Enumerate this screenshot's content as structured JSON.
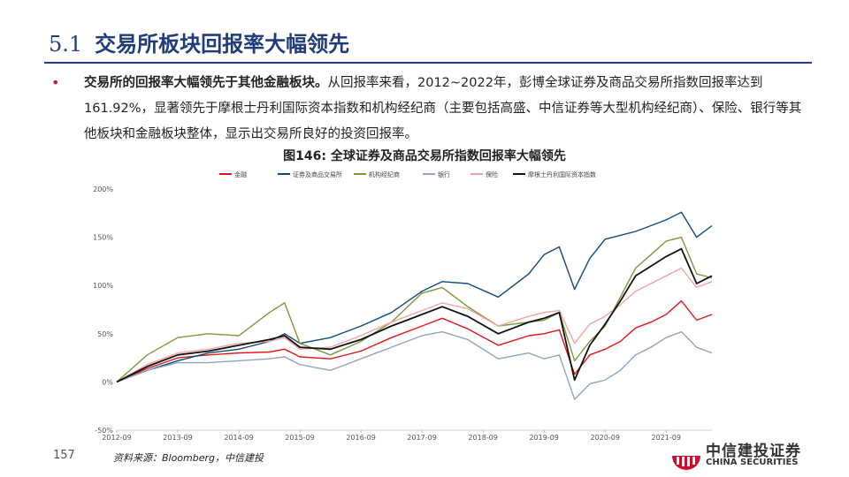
{
  "header": {
    "section_number": "5.1",
    "title": "交易所板块回报率大幅领先"
  },
  "body": {
    "lead_bold": "交易所的回报率大幅领先于其他金融板块。",
    "text": "从回报率来看，2012~2022年，彭博全球证券及商品交易所指数回报率达到161.92%，显著领先于摩根士丹利国际资本指数和机构经纪商（主要包括高盛、中信证券等大型机构经纪商）、保险、银行等其他板块和金融板块整体，显示出交易所良好的投资回报率。"
  },
  "figure": {
    "title": "图146:  全球证券及商品交易所指数回报率大幅领先"
  },
  "footer": {
    "page_number": "157",
    "source": "资料来源：Bloomberg，中信建投",
    "logo_cn": "中信建投证券",
    "logo_en": "CHINA SECURITIES"
  },
  "chart_data": {
    "type": "line",
    "title": "",
    "xlabel": "",
    "ylabel": "",
    "x_ticks": [
      "2012-09",
      "2013-09",
      "2014-09",
      "2015-09",
      "2016-09",
      "2017-09",
      "2018-09",
      "2019-09",
      "2020-09",
      "2021-09"
    ],
    "y_ticks": [
      "200%",
      "150%",
      "100%",
      "50%",
      "0%",
      "-50%"
    ],
    "ylim": [
      -50,
      200
    ],
    "xlim": [
      "2012-09",
      "2022-06"
    ],
    "legend_position": "top",
    "grid": false,
    "x": [
      "2012-09",
      "2013-03",
      "2013-09",
      "2014-03",
      "2014-09",
      "2015-03",
      "2015-06",
      "2015-09",
      "2016-03",
      "2016-09",
      "2017-03",
      "2017-09",
      "2018-01",
      "2018-06",
      "2018-12",
      "2019-06",
      "2019-09",
      "2019-12",
      "2020-03",
      "2020-06",
      "2020-09",
      "2020-12",
      "2021-03",
      "2021-06",
      "2021-09",
      "2021-12",
      "2022-03",
      "2022-06"
    ],
    "series": [
      {
        "name": "金融",
        "color": "#e0161b",
        "values": [
          0,
          14,
          25,
          28,
          30,
          31,
          34,
          26,
          24,
          32,
          46,
          58,
          66,
          55,
          38,
          48,
          50,
          54,
          8,
          28,
          34,
          42,
          56,
          62,
          70,
          84,
          64,
          70
        ]
      },
      {
        "name": "证券及商品交易所",
        "color": "#0f4a7a",
        "values": [
          0,
          12,
          22,
          30,
          34,
          42,
          50,
          40,
          46,
          58,
          72,
          94,
          104,
          102,
          88,
          112,
          132,
          140,
          96,
          128,
          148,
          152,
          156,
          162,
          168,
          176,
          150,
          162
        ]
      },
      {
        "name": "机构经纪商",
        "color": "#7a9a3a",
        "values": [
          0,
          28,
          46,
          50,
          48,
          72,
          82,
          40,
          28,
          42,
          62,
          92,
          98,
          78,
          58,
          62,
          64,
          72,
          22,
          42,
          58,
          88,
          118,
          132,
          146,
          150,
          112,
          108
        ]
      },
      {
        "name": "银行",
        "color": "#8fa5bf",
        "values": [
          0,
          12,
          20,
          20,
          22,
          24,
          26,
          18,
          12,
          24,
          36,
          48,
          52,
          44,
          24,
          30,
          24,
          28,
          -18,
          -2,
          2,
          12,
          28,
          36,
          46,
          52,
          36,
          30
        ]
      },
      {
        "name": "保险",
        "color": "#f2a3a6",
        "values": [
          0,
          18,
          30,
          34,
          40,
          42,
          46,
          34,
          36,
          48,
          62,
          74,
          82,
          76,
          58,
          68,
          72,
          74,
          40,
          60,
          68,
          80,
          94,
          102,
          110,
          118,
          98,
          104
        ]
      },
      {
        "name": "摩根士丹利国际资本指数",
        "color": "#111111",
        "values": [
          0,
          16,
          28,
          32,
          38,
          44,
          48,
          36,
          34,
          44,
          58,
          70,
          78,
          68,
          50,
          62,
          66,
          72,
          2,
          38,
          60,
          84,
          110,
          120,
          130,
          138,
          102,
          110
        ]
      }
    ]
  }
}
